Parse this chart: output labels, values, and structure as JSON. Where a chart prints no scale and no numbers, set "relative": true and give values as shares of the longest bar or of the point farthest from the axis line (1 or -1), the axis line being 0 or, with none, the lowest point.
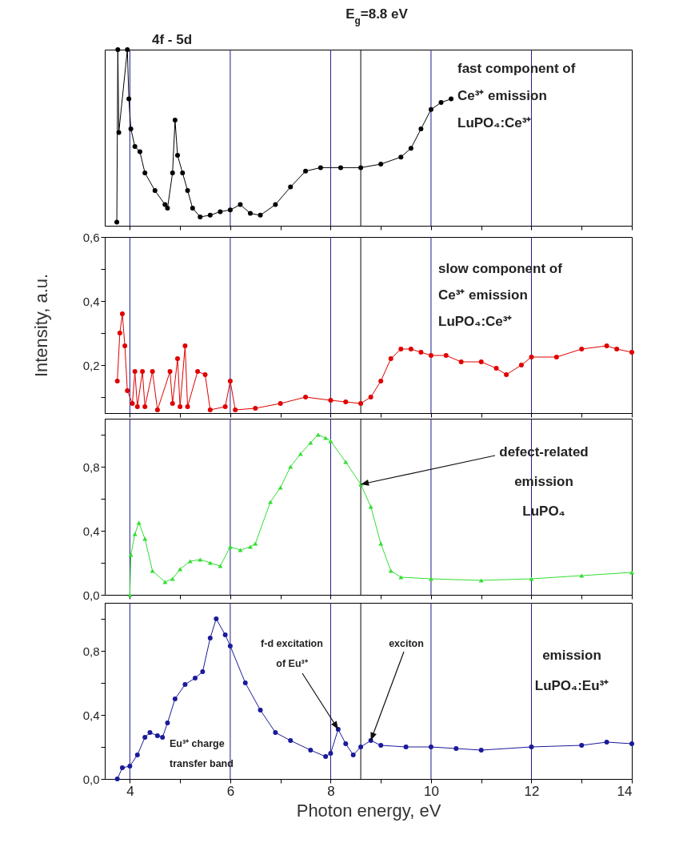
{
  "chart_data": [
    {
      "type": "line",
      "relative": true,
      "xlim": [
        3.5,
        14
      ],
      "xticks": [
        4,
        {
          "value": 5,
          "label": null
        },
        6,
        {
          "value": 7,
          "label": null
        },
        8,
        {
          "value": 9,
          "label": null
        },
        10,
        {
          "value": 11,
          "label": null
        },
        12,
        {
          "value": 13,
          "label": null
        },
        14
      ],
      "tick_labels": false,
      "marker": "circle",
      "x": [
        3.74,
        3.76,
        3.78,
        3.95,
        3.98,
        4.02,
        4.1,
        4.2,
        4.3,
        4.5,
        4.7,
        4.75,
        4.85,
        4.9,
        4.95,
        5.05,
        5.15,
        5.25,
        5.4,
        5.6,
        5.8,
        6.0,
        6.2,
        6.4,
        6.6,
        6.9,
        7.2,
        7.5,
        7.8,
        8.2,
        8.6,
        9.0,
        9.4,
        9.6,
        9.8,
        10.0,
        10.2,
        10.4
      ],
      "series": [
        {
          "color": "#000000",
          "values": [
            0.02,
            1.0,
            0.53,
            1.0,
            0.72,
            0.55,
            0.45,
            0.42,
            0.3,
            0.2,
            0.12,
            0.1,
            0.3,
            0.6,
            0.4,
            0.3,
            0.2,
            0.1,
            0.05,
            0.06,
            0.08,
            0.09,
            0.12,
            0.07,
            0.06,
            0.12,
            0.22,
            0.31,
            0.33,
            0.33,
            0.33,
            0.35,
            0.39,
            0.44,
            0.55,
            0.66,
            0.7,
            0.72
          ]
        }
      ],
      "ref_lines": [
        {
          "axis": "x",
          "value": 4,
          "color": "#1c1c8c"
        },
        {
          "axis": "x",
          "value": 6,
          "color": "#1c1c8c"
        },
        {
          "axis": "x",
          "value": 8,
          "color": "#1c1c8c"
        },
        {
          "axis": "x",
          "value": 10,
          "color": "#1c1c8c"
        },
        {
          "axis": "x",
          "value": 12,
          "color": "#1c1c8c"
        },
        {
          "axis": "x",
          "value": 8.6,
          "color": "#000000"
        }
      ],
      "annotations": [
        "E$_{g}$=8.8 eV",
        "4f - 5d",
        "fast component of\nCe³⁺ emission\nLuPO₄:Ce³⁺"
      ]
    },
    {
      "type": "line",
      "xlim": [
        3.5,
        14
      ],
      "xticks": [
        4,
        {
          "value": 5,
          "label": null
        },
        6,
        {
          "value": 7,
          "label": null
        },
        8,
        {
          "value": 9,
          "label": null
        },
        10,
        {
          "value": 11,
          "label": null
        },
        12,
        {
          "value": 13,
          "label": null
        },
        14
      ],
      "ylim": [
        0.05,
        0.6
      ],
      "yticks": [
        {
          "value": 0.1,
          "label": null
        },
        {
          "value": 0.2,
          "label": "0,2"
        },
        {
          "value": 0.3,
          "label": null
        },
        {
          "value": 0.4,
          "label": "0,4"
        },
        {
          "value": 0.5,
          "label": null
        },
        {
          "value": 0.6,
          "label": "0,6"
        }
      ],
      "tick_labels": "y",
      "marker": "circle",
      "ylabel": "Intensity, a.u.",
      "x": [
        3.75,
        3.8,
        3.85,
        3.9,
        3.95,
        4.05,
        4.1,
        4.15,
        4.25,
        4.3,
        4.45,
        4.55,
        4.8,
        4.85,
        4.95,
        5.0,
        5.1,
        5.15,
        5.35,
        5.5,
        5.6,
        5.9,
        6.0,
        6.1,
        6.5,
        7.0,
        7.5,
        8.0,
        8.3,
        8.6,
        8.8,
        9.0,
        9.2,
        9.4,
        9.6,
        9.8,
        10.0,
        10.3,
        10.6,
        11.0,
        11.3,
        11.5,
        11.8,
        12.0,
        12.5,
        13.0,
        13.5,
        13.7,
        14.0
      ],
      "series": [
        {
          "color": "#e00000",
          "values": [
            0.15,
            0.3,
            0.36,
            0.26,
            0.12,
            0.08,
            0.18,
            0.07,
            0.18,
            0.07,
            0.18,
            0.06,
            0.18,
            0.08,
            0.22,
            0.07,
            0.26,
            0.07,
            0.18,
            0.17,
            0.06,
            0.07,
            0.15,
            0.06,
            0.065,
            0.08,
            0.1,
            0.09,
            0.085,
            0.08,
            0.1,
            0.15,
            0.22,
            0.25,
            0.25,
            0.24,
            0.23,
            0.23,
            0.21,
            0.21,
            0.19,
            0.17,
            0.2,
            0.225,
            0.225,
            0.25,
            0.26,
            0.25,
            0.24
          ]
        }
      ],
      "ref_lines": [
        {
          "axis": "x",
          "value": 4,
          "color": "#1c1c8c"
        },
        {
          "axis": "x",
          "value": 6,
          "color": "#1c1c8c"
        },
        {
          "axis": "x",
          "value": 8,
          "color": "#1c1c8c"
        },
        {
          "axis": "x",
          "value": 10,
          "color": "#1c1c8c"
        },
        {
          "axis": "x",
          "value": 12,
          "color": "#1c1c8c"
        },
        {
          "axis": "x",
          "value": 8.6,
          "color": "#000000"
        }
      ],
      "annotations": [
        "slow component of\nCe³⁺ emission\nLuPO₄:Ce³⁺"
      ]
    },
    {
      "type": "line",
      "xlim": [
        3.5,
        14
      ],
      "xticks": [
        4,
        {
          "value": 5,
          "label": null
        },
        6,
        {
          "value": 7,
          "label": null
        },
        8,
        {
          "value": 9,
          "label": null
        },
        10,
        {
          "value": 11,
          "label": null
        },
        12,
        {
          "value": 13,
          "label": null
        },
        14
      ],
      "ylim": [
        0,
        1.1
      ],
      "yticks": [
        {
          "value": 0,
          "label": "0,0"
        },
        {
          "value": 0.2,
          "label": null
        },
        {
          "value": 0.4,
          "label": "0,4"
        },
        {
          "value": 0.6,
          "label": null
        },
        {
          "value": 0.8,
          "label": "0,8"
        },
        {
          "value": 1.0,
          "label": null
        }
      ],
      "tick_labels": "y",
      "marker": "triangle",
      "x": [
        4.0,
        4.02,
        4.1,
        4.18,
        4.3,
        4.45,
        4.7,
        4.85,
        5.0,
        5.2,
        5.4,
        5.6,
        5.8,
        6.0,
        6.2,
        6.4,
        6.5,
        6.8,
        7.0,
        7.2,
        7.4,
        7.6,
        7.75,
        7.9,
        8.0,
        8.3,
        8.6,
        8.8,
        9.0,
        9.2,
        9.4,
        10.0,
        11.0,
        12.0,
        13.0,
        14.0
      ],
      "series": [
        {
          "color": "#33dd33",
          "values": [
            0.0,
            0.25,
            0.38,
            0.45,
            0.35,
            0.15,
            0.08,
            0.1,
            0.16,
            0.21,
            0.22,
            0.2,
            0.18,
            0.3,
            0.28,
            0.3,
            0.32,
            0.58,
            0.67,
            0.8,
            0.88,
            0.95,
            1.0,
            0.98,
            0.96,
            0.83,
            0.69,
            0.55,
            0.32,
            0.15,
            0.11,
            0.1,
            0.09,
            0.1,
            0.12,
            0.14
          ]
        }
      ],
      "ref_lines": [
        {
          "axis": "x",
          "value": 4,
          "color": "#1c1c8c"
        },
        {
          "axis": "x",
          "value": 6,
          "color": "#1c1c8c"
        },
        {
          "axis": "x",
          "value": 8,
          "color": "#1c1c8c"
        },
        {
          "axis": "x",
          "value": 10,
          "color": "#1c1c8c"
        },
        {
          "axis": "x",
          "value": 12,
          "color": "#1c1c8c"
        },
        {
          "axis": "x",
          "value": 8.6,
          "color": "#000000"
        }
      ],
      "annotations": [
        {
          "text": "defect-related\nemission\nLuPO₄",
          "x": 8.6,
          "y": 0.69
        }
      ]
    },
    {
      "type": "line",
      "xlim": [
        3.5,
        14
      ],
      "xticks": [
        4,
        {
          "value": 5,
          "label": null
        },
        6,
        {
          "value": 7,
          "label": null
        },
        8,
        {
          "value": 9,
          "label": null
        },
        10,
        {
          "value": 11,
          "label": null
        },
        12,
        {
          "value": 13,
          "label": null
        },
        14
      ],
      "ylim": [
        0,
        1.1
      ],
      "yticks": [
        {
          "value": 0,
          "label": "0,0"
        },
        {
          "value": 0.2,
          "label": null
        },
        {
          "value": 0.4,
          "label": "0,4"
        },
        {
          "value": 0.6,
          "label": null
        },
        {
          "value": 0.8,
          "label": "0,8"
        },
        {
          "value": 1.0,
          "label": null
        }
      ],
      "marker": "circle",
      "xlabel": "Photon energy, eV",
      "x": [
        3.75,
        3.85,
        4.0,
        4.15,
        4.3,
        4.4,
        4.55,
        4.65,
        4.75,
        4.9,
        5.1,
        5.3,
        5.45,
        5.6,
        5.72,
        5.9,
        6.0,
        6.3,
        6.6,
        6.9,
        7.2,
        7.6,
        7.9,
        8.0,
        8.15,
        8.3,
        8.45,
        8.6,
        8.8,
        9.0,
        9.5,
        10.0,
        10.5,
        11.0,
        12.0,
        13.0,
        13.5,
        14.0
      ],
      "series": [
        {
          "color": "#1a1a9a",
          "values": [
            0.0,
            0.07,
            0.08,
            0.15,
            0.26,
            0.29,
            0.27,
            0.26,
            0.35,
            0.5,
            0.59,
            0.63,
            0.67,
            0.88,
            1.0,
            0.9,
            0.83,
            0.6,
            0.43,
            0.29,
            0.24,
            0.18,
            0.14,
            0.16,
            0.31,
            0.22,
            0.15,
            0.2,
            0.24,
            0.21,
            0.2,
            0.2,
            0.19,
            0.18,
            0.2,
            0.21,
            0.23,
            0.22
          ]
        }
      ],
      "ref_lines": [
        {
          "axis": "x",
          "value": 4,
          "color": "#1c1c8c"
        },
        {
          "axis": "x",
          "value": 6,
          "color": "#1c1c8c"
        },
        {
          "axis": "x",
          "value": 8,
          "color": "#1c1c8c"
        },
        {
          "axis": "x",
          "value": 10,
          "color": "#1c1c8c"
        },
        {
          "axis": "x",
          "value": 12,
          "color": "#1c1c8c"
        },
        {
          "axis": "x",
          "value": 8.6,
          "color": "#000000"
        }
      ],
      "annotations": [
        {
          "text": "f-d excitation\nof Eu³⁺",
          "x": 8.15,
          "y": 0.31
        },
        {
          "text": "exciton",
          "x": 8.8,
          "y": 0.24
        },
        "Eu³⁺ charge\ntransfer band",
        "emission\nLuPO₄:Eu³⁺"
      ]
    }
  ]
}
